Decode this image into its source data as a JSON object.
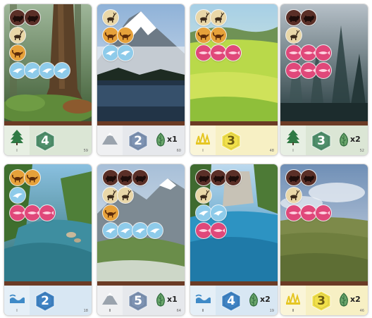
{
  "cards": [
    {
      "art": "forest",
      "habitat": {
        "type": "forest",
        "roman": "I"
      },
      "hex": {
        "value": "4",
        "color": "#4f8f6b",
        "text_color": "#ffffff"
      },
      "bonus": null,
      "card_id": "59",
      "requirements": [
        [
          "bear",
          "bear"
        ],
        [
          "elk"
        ],
        [
          "fox"
        ],
        [
          "hawk",
          "hawk",
          "hawk",
          "hawk"
        ]
      ]
    },
    {
      "art": "mountain",
      "habitat": {
        "type": "mountain",
        "roman": ""
      },
      "hex": {
        "value": "2",
        "color": "#7e93b3",
        "text_color": "#ffffff"
      },
      "bonus": {
        "icon": "forest",
        "multiplier": "x1"
      },
      "card_id": "60",
      "requirements": [
        [
          "elk"
        ],
        [
          "fox",
          "fox"
        ],
        [
          "hawk",
          "hawk"
        ]
      ]
    },
    {
      "art": "prairie",
      "habitat": {
        "type": "prairie",
        "roman": "I"
      },
      "hex": {
        "value": "3",
        "color": "#f1e04a",
        "text_color": "#6b5a12"
      },
      "bonus": null,
      "card_id": "48",
      "requirements": [
        [
          "elk",
          "elk"
        ],
        [
          "fox",
          "fox"
        ],
        [
          "salmon",
          "salmon",
          "salmon"
        ]
      ]
    },
    {
      "art": "misty-forest",
      "habitat": {
        "type": "forest",
        "roman": "I"
      },
      "hex": {
        "value": "3",
        "color": "#4f8f6b",
        "text_color": "#ffffff"
      },
      "bonus": {
        "icon": "forest",
        "multiplier": "x2"
      },
      "card_id": "52",
      "requirements": [
        [
          "bear",
          "bear"
        ],
        [
          "elk"
        ],
        [
          "salmon",
          "salmon",
          "salmon"
        ],
        [
          "salmon",
          "salmon",
          "salmon"
        ]
      ]
    },
    {
      "art": "river",
      "habitat": {
        "type": "river",
        "roman": "I"
      },
      "hex": {
        "value": "2",
        "color": "#3f83c4",
        "text_color": "#ffffff"
      },
      "bonus": null,
      "card_id": "18",
      "requirements": [
        [
          "fox",
          "fox"
        ],
        [
          "hawk"
        ],
        [
          "salmon",
          "salmon",
          "salmon"
        ]
      ]
    },
    {
      "art": "mountain-valley",
      "habitat": {
        "type": "mountain",
        "roman": "II"
      },
      "hex": {
        "value": "5",
        "color": "#7e93b3",
        "text_color": "#ffffff"
      },
      "bonus": {
        "icon": "forest",
        "multiplier": "x1"
      },
      "card_id": "64",
      "requirements": [
        [
          "bear",
          "bear",
          "bear"
        ],
        [
          "elk",
          "elk"
        ],
        [
          "fox"
        ],
        [
          "hawk",
          "hawk",
          "hawk",
          "hawk"
        ]
      ]
    },
    {
      "art": "rapids",
      "habitat": {
        "type": "river",
        "roman": "II"
      },
      "hex": {
        "value": "4",
        "color": "#3f83c4",
        "text_color": "#ffffff"
      },
      "bonus": {
        "icon": "forest",
        "multiplier": "x2"
      },
      "card_id": "19",
      "requirements": [
        [
          "bear",
          "bear",
          "bear"
        ],
        [
          "elk"
        ],
        [
          "hawk",
          "hawk"
        ],
        [
          "salmon",
          "salmon"
        ]
      ]
    },
    {
      "art": "scrubland",
      "habitat": {
        "type": "prairie",
        "roman": "II"
      },
      "hex": {
        "value": "3",
        "color": "#f1e04a",
        "text_color": "#6b5a12"
      },
      "bonus": {
        "icon": "forest",
        "multiplier": "x2"
      },
      "card_id": "46",
      "requirements": [
        [
          "bear",
          "bear"
        ],
        [
          "elk"
        ],
        [
          "salmon",
          "salmon",
          "salmon"
        ]
      ]
    }
  ],
  "colors": {
    "bear": "#5a2f27",
    "elk": "#e9d7a8",
    "fox": "#e6a13a",
    "hawk": "#8ecbea",
    "salmon": "#e0487a",
    "forest_bar": "#dbe6d5",
    "mountain_bar": "#e6e8ec",
    "prairie_bar": "#f7f0c4",
    "river_bar": "#d8e7f3"
  }
}
